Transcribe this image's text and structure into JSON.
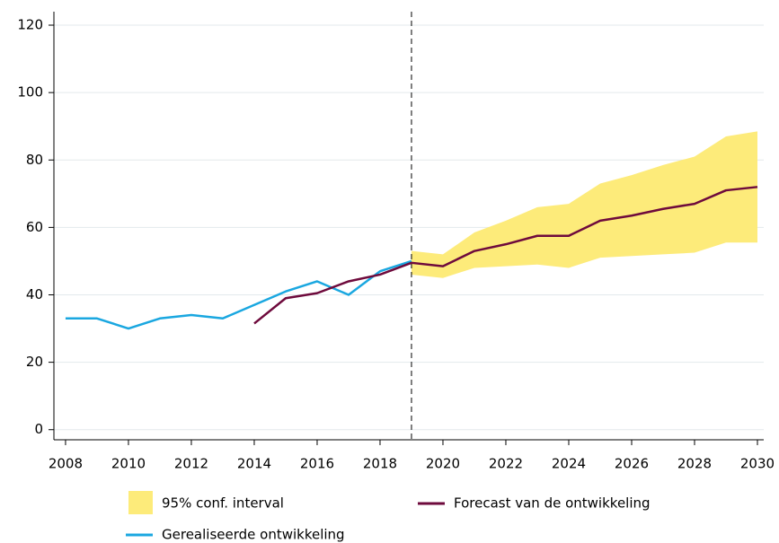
{
  "chart_data": {
    "type": "line",
    "x": [
      2008,
      2009,
      2010,
      2011,
      2012,
      2013,
      2014,
      2015,
      2016,
      2017,
      2018,
      2019,
      2020,
      2021,
      2022,
      2023,
      2024,
      2025,
      2026,
      2027,
      2028,
      2029,
      2030
    ],
    "series": [
      {
        "name": "Gerealiseerde ontwikkeling",
        "color": "#1aa7e0",
        "values": [
          33,
          33,
          30,
          33,
          34,
          33,
          37,
          41,
          44,
          40,
          47,
          50,
          null,
          null,
          null,
          null,
          null,
          null,
          null,
          null,
          null,
          null,
          null
        ]
      },
      {
        "name": "Forecast van de ontwikkeling",
        "color": "#6e0a3c",
        "values": [
          null,
          null,
          null,
          null,
          null,
          null,
          31.5,
          39,
          40.5,
          44,
          46,
          49.5,
          48.5,
          53,
          55,
          57.5,
          57.5,
          62,
          63.5,
          65.5,
          67,
          71,
          72
        ]
      }
    ],
    "band": {
      "name": "95% conf. interval",
      "color": "#fdeb7a",
      "upper": [
        null,
        null,
        null,
        null,
        null,
        null,
        null,
        null,
        null,
        null,
        null,
        53,
        52,
        58.5,
        62,
        66,
        67,
        73,
        75.5,
        78.5,
        81,
        87,
        88.5
      ],
      "lower": [
        null,
        null,
        null,
        null,
        null,
        null,
        null,
        null,
        null,
        null,
        null,
        46,
        45,
        48,
        48.5,
        49,
        48,
        51,
        51.5,
        52,
        52.5,
        55.5,
        55.5
      ]
    },
    "vline": 2019,
    "xlim": [
      2007.63,
      2030.2
    ],
    "ylim": [
      -3,
      124
    ],
    "xticks": [
      2008,
      2010,
      2012,
      2014,
      2016,
      2018,
      2020,
      2022,
      2024,
      2026,
      2028,
      2030
    ],
    "yticks": [
      0,
      20,
      40,
      60,
      80,
      100,
      120
    ],
    "grid": true
  }
}
